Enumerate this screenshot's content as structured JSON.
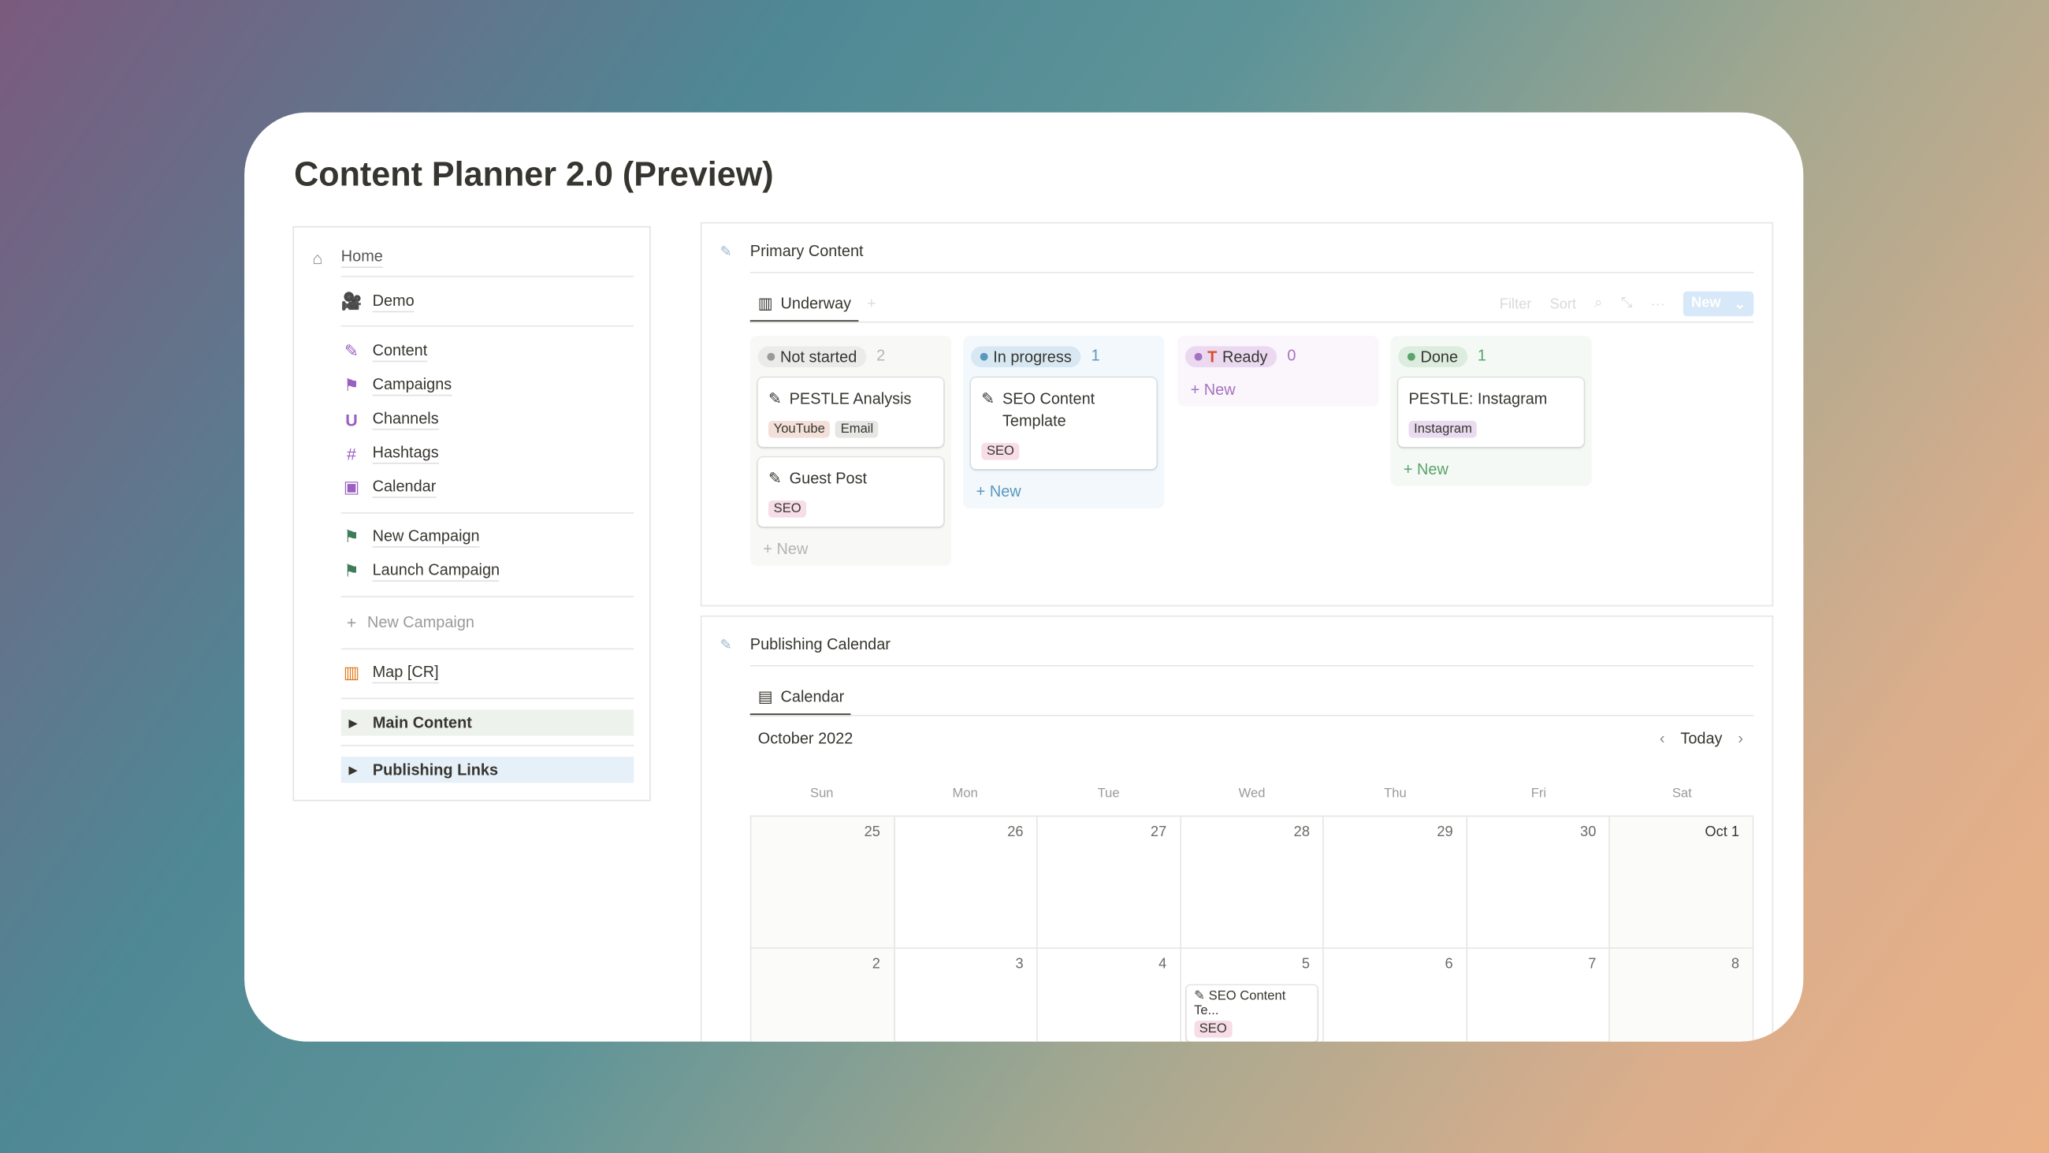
{
  "title": "Content Planner 2.0 (Preview)",
  "sidebar": {
    "home": "Home",
    "demo": "Demo",
    "items": [
      "Content",
      "Campaigns",
      "Channels",
      "Hashtags",
      "Calendar"
    ],
    "campaigns": [
      "New Campaign",
      "Launch Campaign"
    ],
    "new_campaign": "New Campaign",
    "map": "Map [CR]",
    "toggles": [
      "Main Content",
      "Publishing Links"
    ]
  },
  "primary": {
    "title": "Primary Content",
    "tab": "Underway",
    "tools": {
      "filter": "Filter",
      "sort": "Sort",
      "new": "New"
    },
    "columns": [
      {
        "status": "Not started",
        "count": "2",
        "cards": [
          {
            "title": "PESTLE Analysis",
            "tags": [
              "YouTube",
              "Email"
            ]
          },
          {
            "title": "Guest Post",
            "tags": [
              "SEO"
            ]
          }
        ],
        "new": "New"
      },
      {
        "status": "In progress",
        "count": "1",
        "cards": [
          {
            "title": "SEO Content Template",
            "tags": [
              "SEO"
            ]
          }
        ],
        "new": "New"
      },
      {
        "status": "Ready",
        "count": "0",
        "cards": [],
        "new": "New"
      },
      {
        "status": "Done",
        "count": "1",
        "cards": [
          {
            "title": "PESTLE: Instagram",
            "tags": [
              "Instagram"
            ]
          }
        ],
        "new": "New"
      }
    ]
  },
  "calendar": {
    "title": "Publishing Calendar",
    "tab": "Calendar",
    "month": "October 2022",
    "today": "Today",
    "weekdays": [
      "Sun",
      "Mon",
      "Tue",
      "Wed",
      "Thu",
      "Fri",
      "Sat"
    ],
    "days": [
      "25",
      "26",
      "27",
      "28",
      "29",
      "30",
      "Oct 1",
      "2",
      "3",
      "4",
      "5",
      "6",
      "7",
      "8"
    ],
    "event": {
      "title": "SEO Content Te...",
      "tag": "SEO"
    }
  }
}
